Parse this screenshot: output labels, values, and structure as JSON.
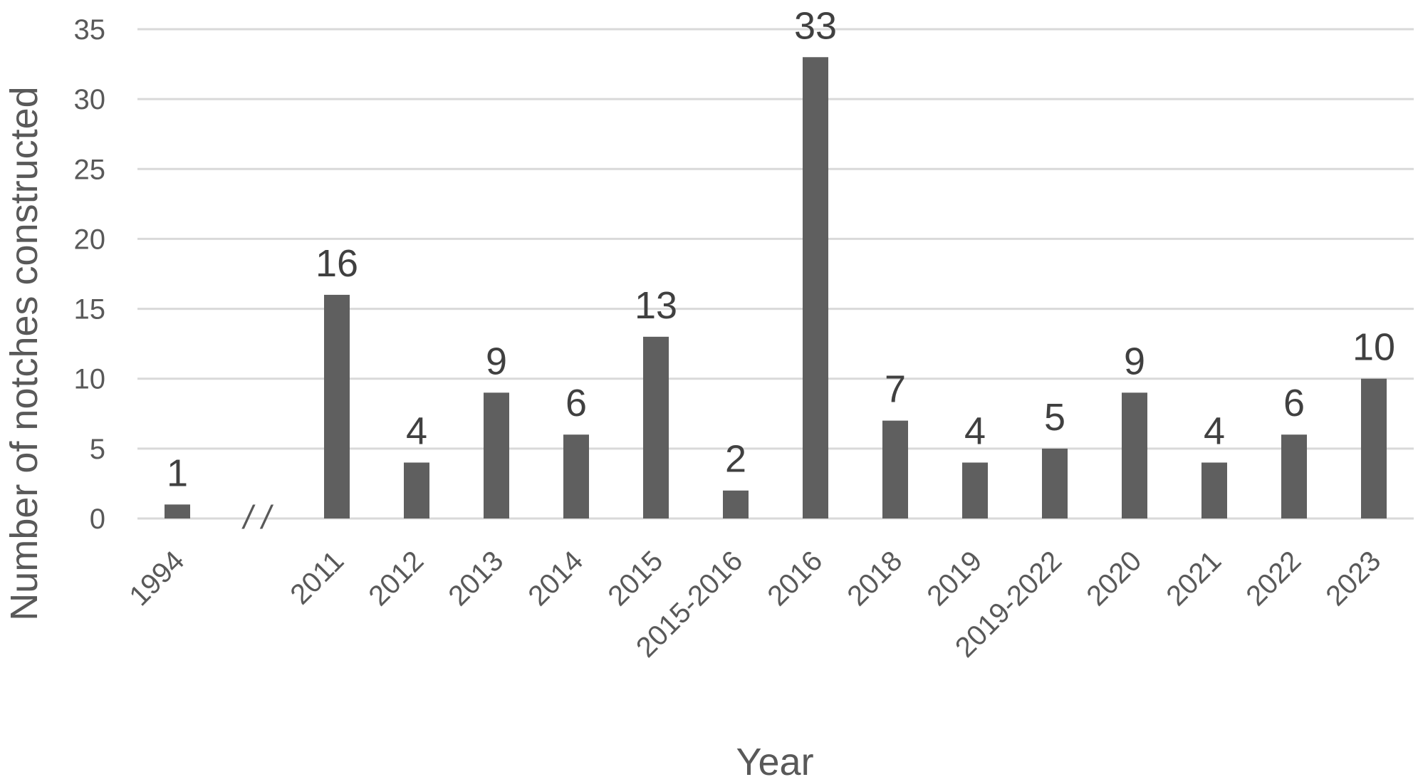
{
  "chart_data": {
    "type": "bar",
    "xlabel": "Year",
    "ylabel": "Number of notches constructed",
    "ylim": [
      0,
      35
    ],
    "yticks": [
      0,
      5,
      10,
      15,
      20,
      25,
      30,
      35
    ],
    "grid": true,
    "legend": "none",
    "bar_color": "#5f5f5f",
    "axis_break_marker": "/ /",
    "categories": [
      "1994",
      "",
      "2011",
      "2012",
      "2013",
      "2014",
      "2015",
      "2015-2016",
      "2016",
      "2018",
      "2019",
      "2019-2022",
      "2020",
      "2021",
      "2022",
      "2023"
    ],
    "values": [
      1,
      null,
      16,
      4,
      9,
      6,
      13,
      2,
      33,
      7,
      4,
      5,
      9,
      4,
      6,
      10
    ]
  }
}
